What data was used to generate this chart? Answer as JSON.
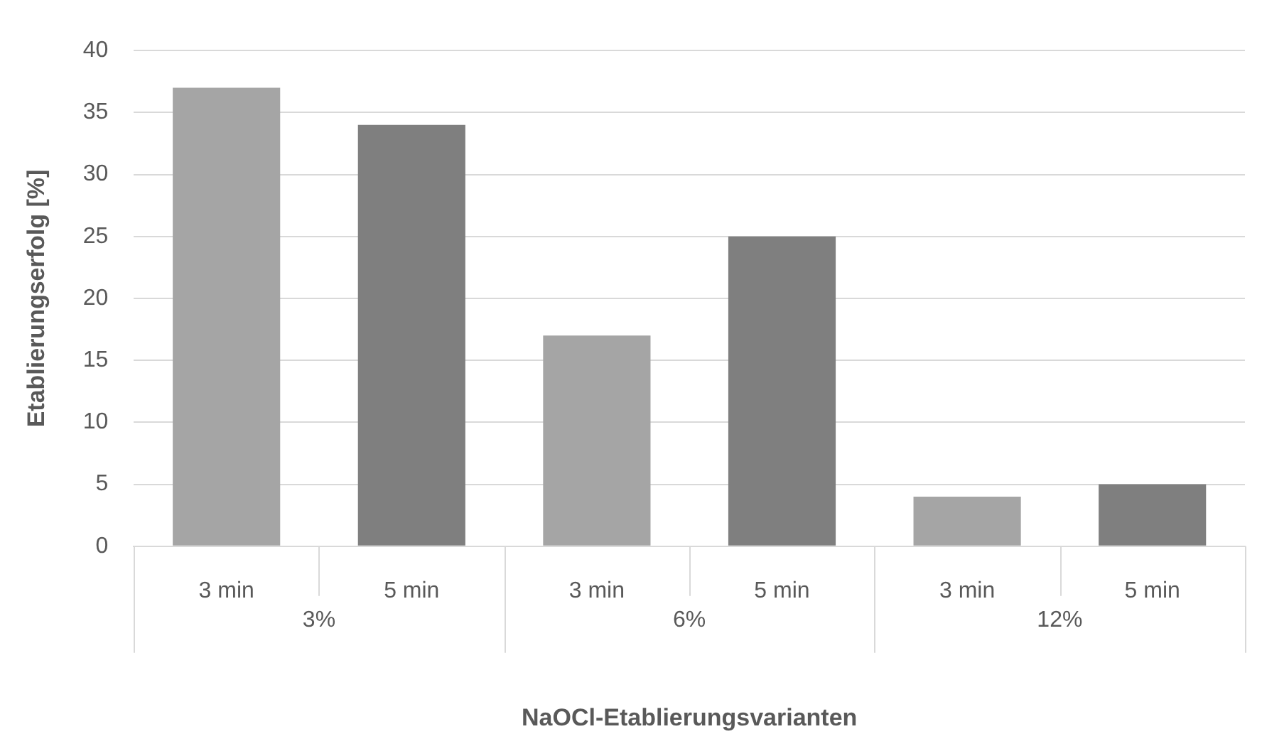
{
  "chart_data": {
    "type": "bar",
    "xlabel": "NaOCl-Etablierungsvarianten",
    "ylabel": "Etablierungserfolg [%]",
    "categories": [
      "3 min",
      "5 min",
      "3 min",
      "5 min",
      "3 min",
      "5 min"
    ],
    "values": [
      37,
      34,
      17,
      25,
      4,
      5
    ],
    "colors": [
      "#a5a5a5",
      "#7f7f7f",
      "#a5a5a5",
      "#7f7f7f",
      "#a5a5a5",
      "#7f7f7f"
    ],
    "ylim": [
      0,
      40
    ],
    "yticks": [
      0,
      5,
      10,
      15,
      20,
      25,
      30,
      35,
      40
    ],
    "grid": "y",
    "annotations": [
      "3%",
      "6%",
      "12%"
    ]
  }
}
